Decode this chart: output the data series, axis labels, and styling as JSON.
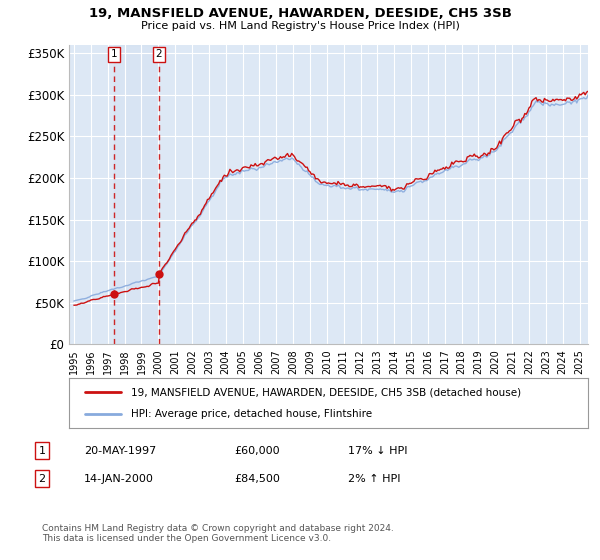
{
  "title": "19, MANSFIELD AVENUE, HAWARDEN, DEESIDE, CH5 3SB",
  "subtitle": "Price paid vs. HM Land Registry's House Price Index (HPI)",
  "background_color": "#ffffff",
  "plot_bg_color": "#dde8f5",
  "legend_line1": "19, MANSFIELD AVENUE, HAWARDEN, DEESIDE, CH5 3SB (detached house)",
  "legend_line2": "HPI: Average price, detached house, Flintshire",
  "footnote": "Contains HM Land Registry data © Crown copyright and database right 2024.\nThis data is licensed under the Open Government Licence v3.0.",
  "sale1_date": "20-MAY-1997",
  "sale1_price": "£60,000",
  "sale1_hpi": "17% ↓ HPI",
  "sale2_date": "14-JAN-2000",
  "sale2_price": "£84,500",
  "sale2_hpi": "2% ↑ HPI",
  "hpi_color": "#88aadd",
  "price_color": "#cc1111",
  "marker_color": "#cc1111",
  "dashed_color": "#cc1111",
  "ylim": [
    0,
    360000
  ],
  "yticks": [
    0,
    50000,
    100000,
    150000,
    200000,
    250000,
    300000,
    350000
  ],
  "ytick_labels": [
    "£0",
    "£50K",
    "£100K",
    "£150K",
    "£200K",
    "£250K",
    "£300K",
    "£350K"
  ],
  "sale1_x": 1997.37,
  "sale1_y": 60000,
  "sale2_x": 2000.04,
  "sale2_y": 84500,
  "xmin": 1994.7,
  "xmax": 2025.5
}
